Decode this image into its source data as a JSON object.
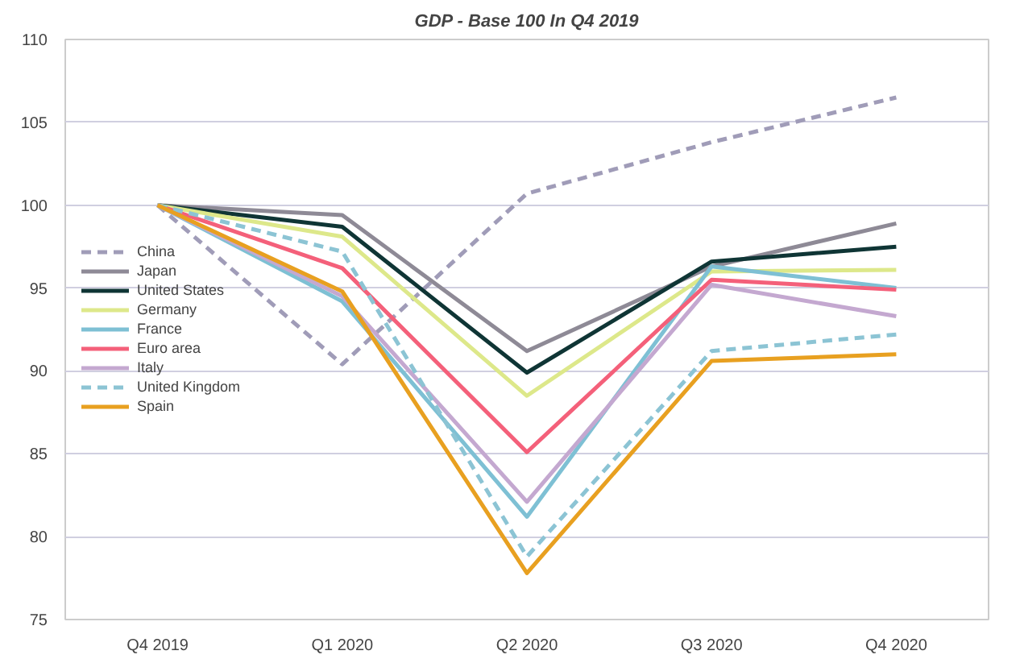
{
  "chart_data": {
    "type": "line",
    "title": "GDP - Base 100 In Q4 2019",
    "categories": [
      "Q4 2019",
      "Q1 2020",
      "Q2 2020",
      "Q3 2020",
      "Q4 2020"
    ],
    "ylim": [
      75,
      110
    ],
    "yticks": [
      75,
      80,
      85,
      90,
      95,
      100,
      105,
      110
    ],
    "grid": "y",
    "legend": "left",
    "marker": "none",
    "series": [
      {
        "name": "China",
        "color": "#a09cb8",
        "line_style": "dashed",
        "values": [
          100,
          90.4,
          100.7,
          103.8,
          106.5
        ]
      },
      {
        "name": "Japan",
        "color": "#8e8a96",
        "values": [
          100,
          99.4,
          91.2,
          96.3,
          98.9
        ]
      },
      {
        "name": "United States",
        "color": "#0f3535",
        "values": [
          100,
          98.7,
          89.9,
          96.6,
          97.5
        ]
      },
      {
        "name": "Germany",
        "color": "#dde88a",
        "values": [
          100,
          98.1,
          88.5,
          96.0,
          96.1
        ]
      },
      {
        "name": "France",
        "color": "#7ec0d4",
        "values": [
          100,
          94.2,
          81.2,
          96.3,
          95.0
        ]
      },
      {
        "name": "Euro area",
        "color": "#f4607a",
        "values": [
          100,
          96.2,
          85.1,
          95.5,
          94.9
        ]
      },
      {
        "name": "Italy",
        "color": "#c4a8d0",
        "values": [
          100,
          94.5,
          82.1,
          95.2,
          93.3
        ]
      },
      {
        "name": "United Kingdom",
        "color": "#8cc4d4",
        "line_style": "dashed",
        "values": [
          100,
          97.2,
          78.8,
          91.2,
          92.2
        ]
      },
      {
        "name": "Spain",
        "color": "#e8a020",
        "values": [
          100,
          94.8,
          77.8,
          90.6,
          91.0
        ]
      }
    ]
  }
}
